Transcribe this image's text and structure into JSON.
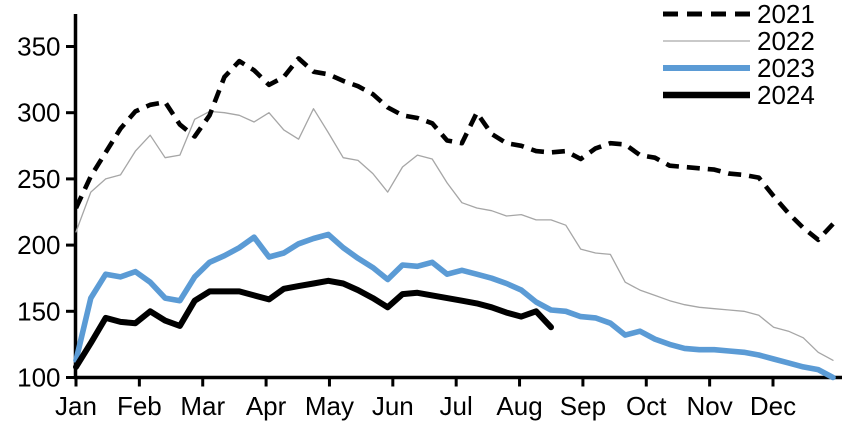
{
  "chart_data": {
    "type": "line",
    "title": "",
    "x_axis": {
      "tick_labels": [
        "Jan",
        "Feb",
        "Mar",
        "Apr",
        "May",
        "Jun",
        "Jul",
        "Aug",
        "Sep",
        "Oct",
        "Nov",
        "Dec"
      ],
      "granularity": "weekly"
    },
    "y_axis": {
      "ticks": [
        100,
        150,
        200,
        250,
        300,
        350
      ],
      "range": [
        100,
        375
      ],
      "grid": false
    },
    "legend": {
      "position": "top-right",
      "entries": [
        {
          "label": "2021",
          "color": "#000000",
          "style": "dashed",
          "width": 5
        },
        {
          "label": "2022",
          "color": "#b7b7b7",
          "style": "solid",
          "width": 1.6
        },
        {
          "label": "2023",
          "color": "#5b9bd5",
          "style": "solid",
          "width": 6
        },
        {
          "label": "2024",
          "color": "#000000",
          "style": "solid",
          "width": 6.5
        }
      ]
    },
    "series": [
      {
        "name": "2021",
        "color": "#000000",
        "style": "dashed",
        "stroke_width": 4.6,
        "values": [
          228,
          252,
          270,
          288,
          301,
          306,
          308,
          291,
          282,
          298,
          327,
          339,
          332,
          321,
          327,
          341,
          331,
          329,
          324,
          320,
          314,
          304,
          298,
          296,
          292,
          279,
          277,
          300,
          284,
          277,
          275,
          271,
          270,
          271,
          265,
          273,
          277,
          276,
          268,
          266,
          260,
          259,
          258,
          257,
          254,
          253,
          251,
          237,
          224,
          213,
          204,
          216
        ]
      },
      {
        "name": "2022",
        "color": "#a6a6a6",
        "style": "solid",
        "stroke_width": 1.3,
        "values": [
          210,
          240,
          250,
          253,
          271,
          283,
          266,
          268,
          295,
          301,
          300,
          298,
          293,
          300,
          287,
          280,
          303,
          285,
          266,
          264,
          254,
          240,
          259,
          268,
          265,
          247,
          232,
          228,
          226,
          222,
          223,
          219,
          219,
          215,
          197,
          194,
          193,
          172,
          166,
          162,
          158,
          155,
          153,
          152,
          151,
          150,
          147,
          138,
          135,
          130,
          119,
          113
        ]
      },
      {
        "name": "2023",
        "color": "#5b9bd5",
        "style": "solid",
        "stroke_width": 5.6,
        "values": [
          113,
          160,
          178,
          176,
          180,
          172,
          160,
          158,
          176,
          187,
          192,
          198,
          206,
          191,
          194,
          201,
          205,
          208,
          198,
          190,
          183,
          174,
          185,
          184,
          187,
          178,
          181,
          178,
          175,
          171,
          166,
          157,
          151,
          150,
          146,
          145,
          141,
          132,
          135,
          129,
          125,
          122,
          121,
          121,
          120,
          119,
          117,
          114,
          111,
          108,
          106,
          100
        ]
      },
      {
        "name": "2024",
        "color": "#000000",
        "style": "solid",
        "stroke_width": 6,
        "values": [
          108,
          126,
          145,
          142,
          141,
          150,
          143,
          139,
          158,
          165,
          165,
          165,
          162,
          159,
          167,
          169,
          171,
          173,
          171,
          166,
          160,
          153,
          163,
          164,
          162,
          160,
          158,
          156,
          153,
          149,
          146,
          150,
          138
        ]
      }
    ]
  },
  "colors": {
    "axis": "#000000",
    "text": "#000000",
    "background": "#ffffff"
  }
}
